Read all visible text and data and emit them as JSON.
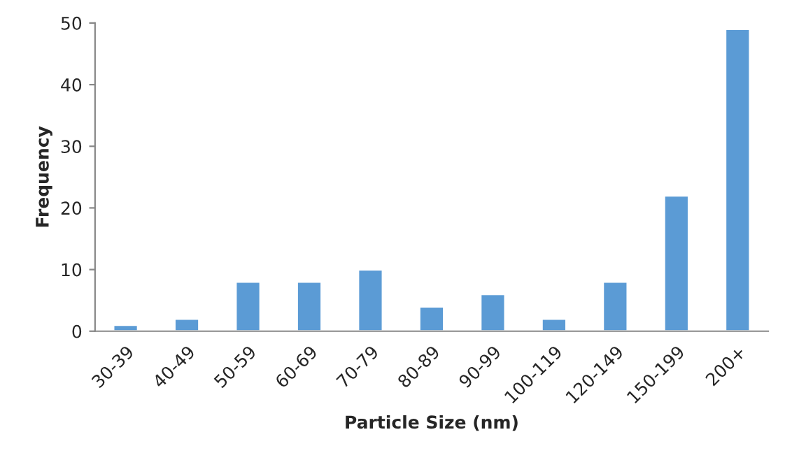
{
  "chart_data": {
    "type": "bar",
    "xlabel": "Particle Size (nm)",
    "ylabel": "Frequency",
    "categories": [
      "30-39",
      "40-49",
      "50-59",
      "60-69",
      "70-79",
      "80-89",
      "90-99",
      "100-119",
      "120-149",
      "150-199",
      "200+"
    ],
    "values": [
      1,
      2,
      8,
      8,
      10,
      4,
      6,
      2,
      8,
      22,
      49
    ],
    "color": "#5b9bd5",
    "ylim": [
      0,
      50
    ],
    "yticks": [
      0,
      10,
      20,
      30,
      40,
      50
    ],
    "grid": false,
    "legend": false
  }
}
